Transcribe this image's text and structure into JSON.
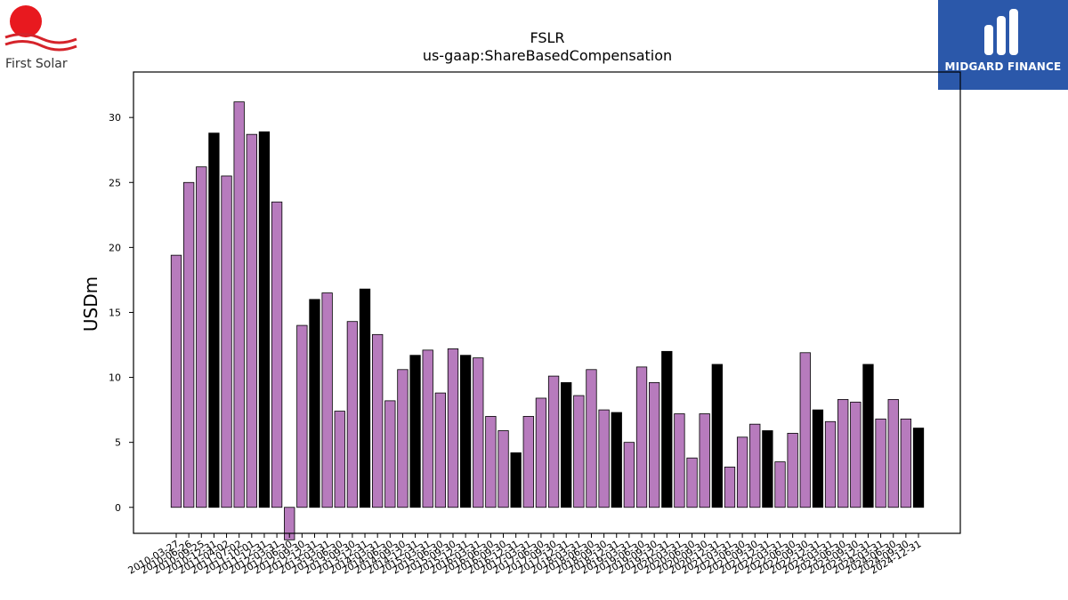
{
  "brand_left": {
    "name": "First Solar",
    "icon": "sun-icon",
    "sun_color": "#e8191f",
    "wave_color": "#d5232a"
  },
  "brand_right": {
    "name": "MIDGARD FINANCE",
    "bg_color": "#2b58aa",
    "icon": "midgard-logo-icon"
  },
  "chart_data": {
    "type": "bar",
    "title": "FSLR",
    "subtitle": "us-gaap:ShareBasedCompensation",
    "xlabel": "",
    "ylabel": "USDm",
    "ylim": [
      -2,
      33.5
    ],
    "yticks": [
      0,
      5,
      10,
      15,
      20,
      25,
      30
    ],
    "grid": false,
    "colors": {
      "quarter": "#b77bbd",
      "fiscal_year_end": "#000000",
      "edge": "#000000"
    },
    "categories": [
      "2010-03-27",
      "2010-06-26",
      "2010-09-25",
      "2010-12-31",
      "2011-04-02",
      "2011-07-02",
      "2011-10-01",
      "2011-12-31",
      "2012-03-31",
      "2012-06-30",
      "2012-09-30",
      "2012-12-31",
      "2013-03-31",
      "2013-06-30",
      "2013-09-30",
      "2013-12-31",
      "2014-03-31",
      "2014-06-30",
      "2014-09-30",
      "2014-12-31",
      "2015-03-31",
      "2015-06-30",
      "2015-09-30",
      "2015-12-31",
      "2016-03-31",
      "2016-06-30",
      "2016-09-30",
      "2016-12-31",
      "2017-03-31",
      "2017-06-30",
      "2017-09-30",
      "2017-12-31",
      "2018-03-31",
      "2018-06-30",
      "2018-09-30",
      "2018-12-31",
      "2019-03-31",
      "2019-06-30",
      "2019-09-30",
      "2019-12-31",
      "2020-03-31",
      "2020-06-30",
      "2020-09-30",
      "2020-12-31",
      "2021-03-31",
      "2021-06-30",
      "2021-09-30",
      "2021-12-31",
      "2022-03-31",
      "2022-06-30",
      "2022-09-30",
      "2022-12-31",
      "2023-03-31",
      "2023-06-30",
      "2023-09-30",
      "2023-12-31",
      "2024-03-31",
      "2024-06-30",
      "2024-09-30",
      "2024-12-31"
    ],
    "values": [
      19.4,
      25.0,
      26.2,
      28.8,
      25.5,
      31.2,
      28.7,
      28.9,
      23.5,
      -2.5,
      14.0,
      16.0,
      16.5,
      7.4,
      14.3,
      16.8,
      13.3,
      8.2,
      10.6,
      11.7,
      12.1,
      8.8,
      12.2,
      11.7,
      11.5,
      7.0,
      5.9,
      4.2,
      7.0,
      8.4,
      10.1,
      9.6,
      8.6,
      10.6,
      7.5,
      7.3,
      5.0,
      10.8,
      9.6,
      12.0,
      7.2,
      3.8,
      7.2,
      11.0,
      3.1,
      5.4,
      6.4,
      5.9,
      3.5,
      5.7,
      11.9,
      7.5,
      6.6,
      8.3,
      8.1,
      11.0,
      6.8,
      8.3,
      6.8,
      6.1
    ],
    "fiscal_year_end": [
      false,
      false,
      false,
      true,
      false,
      false,
      false,
      true,
      false,
      false,
      false,
      true,
      false,
      false,
      false,
      true,
      false,
      false,
      false,
      true,
      false,
      false,
      false,
      true,
      false,
      false,
      false,
      true,
      false,
      false,
      false,
      true,
      false,
      false,
      false,
      true,
      false,
      false,
      false,
      true,
      false,
      false,
      false,
      true,
      false,
      false,
      false,
      true,
      false,
      false,
      false,
      true,
      false,
      false,
      false,
      true,
      false,
      false,
      false,
      true
    ]
  }
}
